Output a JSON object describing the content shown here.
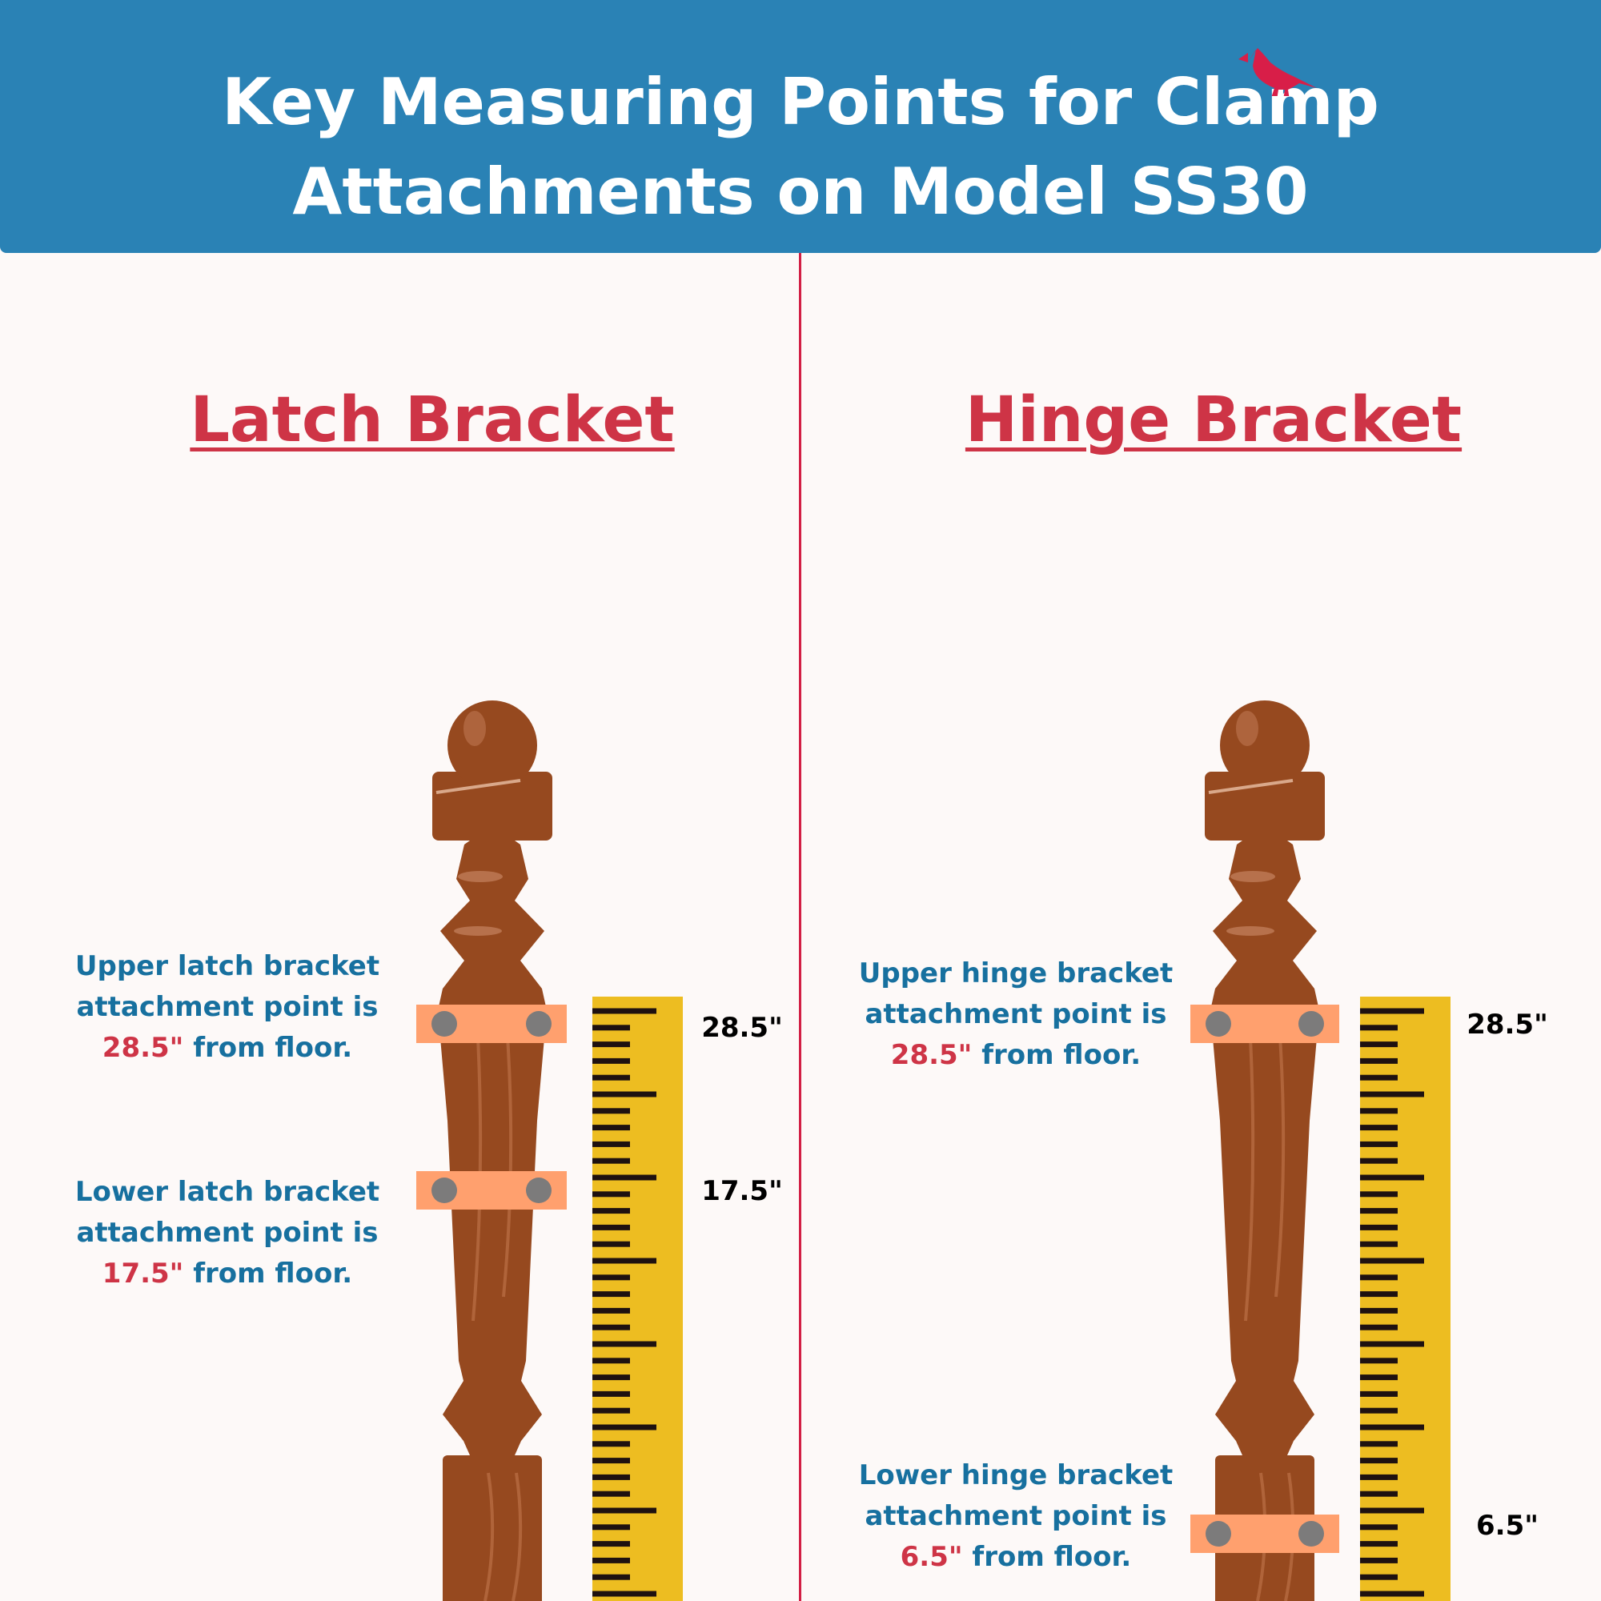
{
  "header": {
    "title_line1": "Key Measuring Points for Clamp",
    "title_line2": "Attachments on Model SS30",
    "logo": "cardinal-bird-icon",
    "background_color": "#2A82B5"
  },
  "colors": {
    "accent_red": "#CE3446",
    "label_blue": "#17709F",
    "clamp": "#FFA06E",
    "ruler": "#EDBD21",
    "wood": "#96491F"
  },
  "panels": [
    {
      "heading": "Latch Bracket",
      "upper": {
        "line1": "Upper latch bracket",
        "line2": "attachment point is",
        "value": "28.5\"",
        "suffix": " from floor."
      },
      "lower": {
        "line1": "Lower latch bracket",
        "line2": "attachment point is",
        "value": "17.5\"",
        "suffix": " from floor."
      },
      "measurements": [
        "28.5\"",
        "17.5\""
      ]
    },
    {
      "heading": "Hinge Bracket",
      "upper": {
        "line1": "Upper hinge bracket",
        "line2": "attachment point is",
        "value": "28.5\"",
        "suffix": " from floor."
      },
      "lower": {
        "line1": "Lower hinge bracket",
        "line2": "attachment point is",
        "value": "6.5\"",
        "suffix": " from floor."
      },
      "measurements": [
        "28.5\"",
        "6.5\""
      ]
    }
  ]
}
